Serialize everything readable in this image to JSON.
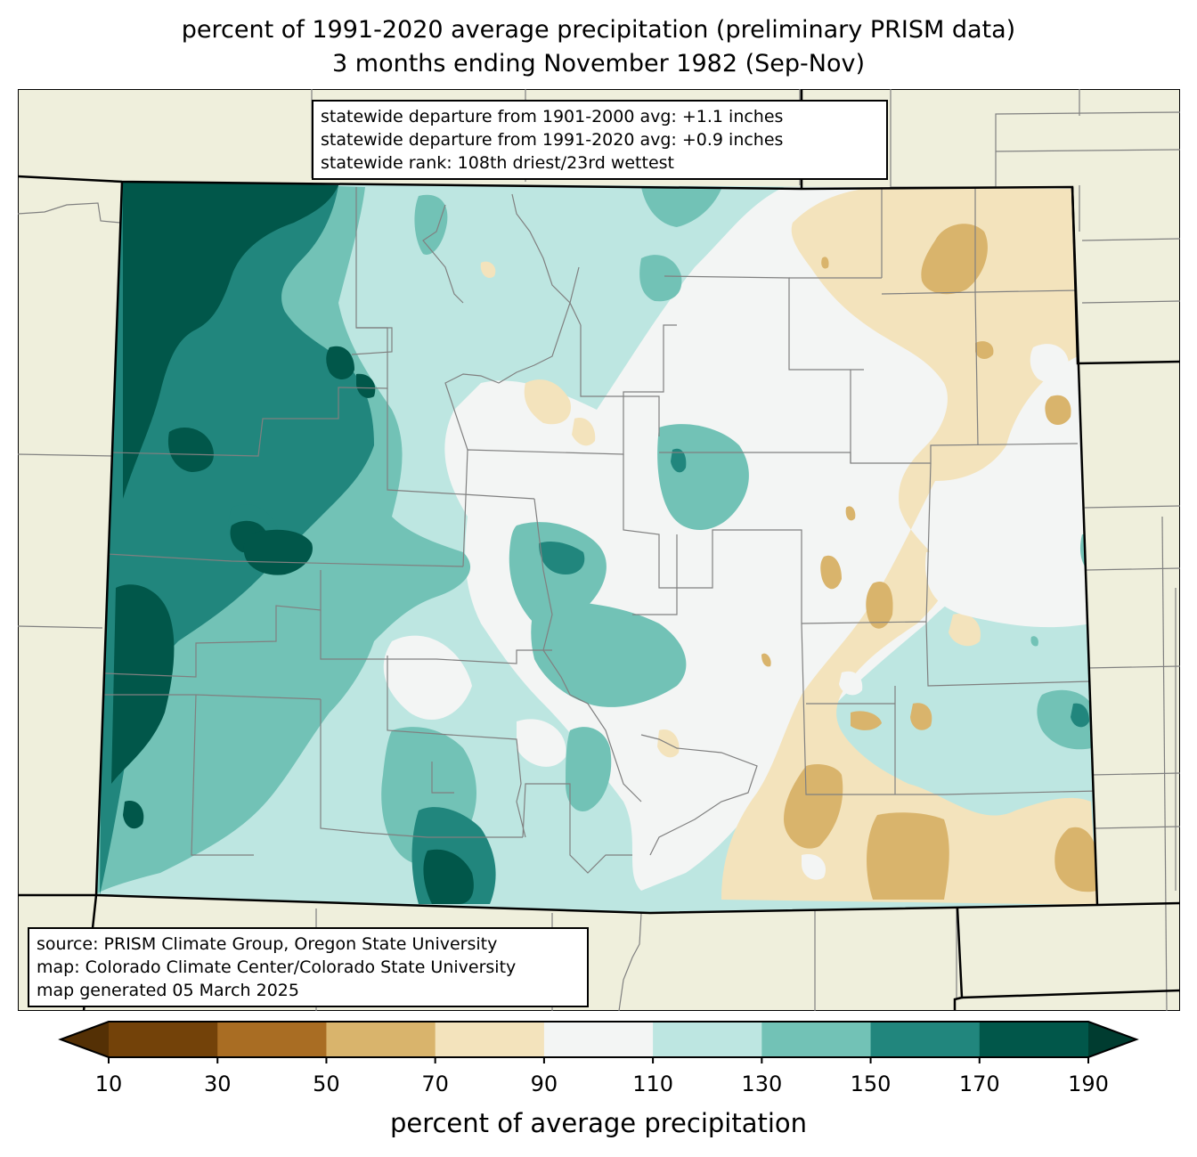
{
  "title": {
    "line1": "percent of 1991-2020 average precipitation (preliminary PRISM data)",
    "line2": "3 months ending November 1982 (Sep-Nov)"
  },
  "stats_box": {
    "line1": "statewide departure from 1901-2000 avg: +1.1 inches",
    "line2": "statewide departure from 1991-2020 avg: +0.9 inches",
    "line3": "statewide rank: 108th driest/23rd wettest"
  },
  "source_box": {
    "line1": "source: PRISM Climate Group, Oregon State University",
    "line2": "map: Colorado Climate Center/Colorado State University",
    "line3": "map generated 05 March 2025"
  },
  "colorbar": {
    "label": "percent of average precipitation",
    "ticks": [
      "10",
      "30",
      "50",
      "70",
      "90",
      "110",
      "130",
      "150",
      "170",
      "190"
    ],
    "under_color": "#543005",
    "over_color": "#003c30",
    "bins": [
      {
        "range": "10-30",
        "color": "#734209"
      },
      {
        "range": "30-50",
        "color": "#a96d23"
      },
      {
        "range": "50-70",
        "color": "#d9b46c"
      },
      {
        "range": "70-90",
        "color": "#f3e3bc"
      },
      {
        "range": "90-110",
        "color": "#f3f5f4"
      },
      {
        "range": "110-130",
        "color": "#bde6e1"
      },
      {
        "range": "130-150",
        "color": "#72c2b6"
      },
      {
        "range": "150-170",
        "color": "#21867d"
      },
      {
        "range": "170-190",
        "color": "#01574a"
      }
    ]
  },
  "map_colors": {
    "land": "#efefdc",
    "county_lines": "#808080",
    "state_lines": "#000000"
  }
}
